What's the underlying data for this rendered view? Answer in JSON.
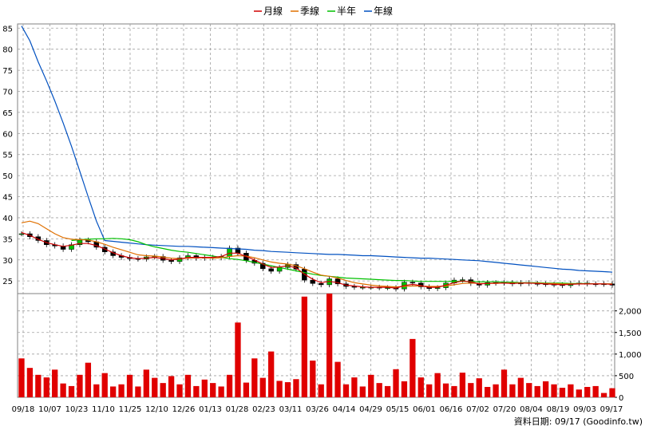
{
  "chart_data": {
    "type": "candlestick-volume",
    "legend": [
      {
        "label": "月線",
        "color": "#d00000"
      },
      {
        "label": "季線",
        "color": "#e07000"
      },
      {
        "label": "半年",
        "color": "#00c000"
      },
      {
        "label": "年線",
        "color": "#0050c0"
      }
    ],
    "price_axis": {
      "ylim": [
        22,
        86
      ],
      "ticks": [
        25,
        30,
        35,
        40,
        45,
        50,
        55,
        60,
        65,
        70,
        75,
        80,
        85
      ]
    },
    "volume_axis": {
      "ylim": [
        0,
        2400
      ],
      "ticks": [
        "0",
        "500",
        "1,000",
        "1,500",
        "2,000"
      ]
    },
    "x_ticks": [
      "09/18",
      "10/07",
      "10/23",
      "11/10",
      "11/25",
      "12/10",
      "12/26",
      "01/13",
      "01/28",
      "02/23",
      "03/11",
      "03/26",
      "04/14",
      "04/29",
      "05/15",
      "06/01",
      "06/16",
      "07/02",
      "07/20",
      "08/04",
      "08/19",
      "09/03",
      "09/17"
    ],
    "footer": "資料日期: 09/17 (Goodinfo.tw)",
    "price_close": [
      36.2,
      35.5,
      34.6,
      33.6,
      33.3,
      32.5,
      33.6,
      34.7,
      34.3,
      33.0,
      31.9,
      31.0,
      30.6,
      30.3,
      30.2,
      30.7,
      30.8,
      29.9,
      29.6,
      30.5,
      31.0,
      30.4,
      30.6,
      30.5,
      30.8,
      32.8,
      31.6,
      29.9,
      29.2,
      27.9,
      27.3,
      28.2,
      28.9,
      27.8,
      25.2,
      24.4,
      24.1,
      25.5,
      24.3,
      23.7,
      23.5,
      23.5,
      23.5,
      23.4,
      23.4,
      23.1,
      24.7,
      24.5,
      23.6,
      23.2,
      23.4,
      24.5,
      25.2,
      25.3,
      24.4,
      24.0,
      24.6,
      24.5,
      24.6,
      24.3,
      24.6,
      24.4,
      24.3,
      24.2,
      24.1,
      23.9,
      24.4,
      24.5,
      24.3,
      24.2,
      24.3,
      24.0
    ],
    "ma_month": [
      36.5,
      35.8,
      34.9,
      34.1,
      33.6,
      33.2,
      33.5,
      33.9,
      33.9,
      33.4,
      32.6,
      31.7,
      31.0,
      30.5,
      30.3,
      30.4,
      30.6,
      30.3,
      30.0,
      30.2,
      30.6,
      30.6,
      30.6,
      30.6,
      30.8,
      31.6,
      31.6,
      30.8,
      30.0,
      29.0,
      28.2,
      28.3,
      28.6,
      28.1,
      26.6,
      25.4,
      24.6,
      24.9,
      24.6,
      24.0,
      23.8,
      23.6,
      23.5,
      23.5,
      23.5,
      23.3,
      23.9,
      24.2,
      23.9,
      23.5,
      23.5,
      24.0,
      24.6,
      25.0,
      24.8,
      24.3,
      24.4,
      24.5,
      24.5,
      24.4,
      24.5,
      24.5,
      24.4,
      24.3,
      24.2,
      24.1,
      24.2,
      24.3,
      24.3,
      24.3,
      24.3,
      24.2
    ],
    "ma_quarter": [
      38.8,
      39.2,
      38.6,
      37.4,
      36.2,
      35.3,
      34.9,
      34.8,
      34.7,
      34.3,
      33.7,
      33.0,
      32.4,
      31.8,
      31.2,
      31.0,
      30.9,
      30.7,
      30.4,
      30.3,
      30.4,
      30.5,
      30.5,
      30.4,
      30.5,
      30.8,
      31.0,
      30.9,
      30.5,
      30.0,
      29.5,
      29.2,
      29.0,
      28.6,
      27.9,
      27.1,
      26.4,
      26.1,
      25.7,
      25.1,
      24.6,
      24.3,
      24.0,
      23.8,
      23.7,
      23.6,
      23.7,
      23.8,
      23.8,
      23.7,
      23.7,
      23.8,
      24.1,
      24.4,
      24.5,
      24.4,
      24.4,
      24.4,
      24.5,
      24.5,
      24.5,
      24.5,
      24.5,
      24.4,
      24.4,
      24.3,
      24.3,
      24.3,
      24.3,
      24.3,
      24.3,
      24.3
    ],
    "ma_half": [
      null,
      null,
      null,
      null,
      null,
      null,
      34.6,
      34.8,
      34.9,
      35.0,
      35.0,
      35.1,
      35.0,
      34.8,
      34.3,
      33.6,
      33.1,
      32.7,
      32.3,
      32.0,
      31.8,
      31.5,
      31.2,
      30.9,
      30.6,
      30.3,
      30.1,
      29.8,
      29.4,
      29.0,
      28.6,
      28.2,
      27.8,
      27.4,
      27.0,
      26.6,
      26.3,
      26.1,
      25.9,
      25.7,
      25.6,
      25.5,
      25.4,
      25.3,
      25.2,
      25.1,
      25.1,
      25.0,
      24.9,
      24.9,
      24.9,
      24.9,
      24.9,
      24.9,
      24.9,
      24.8,
      24.8,
      24.8,
      24.7,
      24.7,
      24.6,
      24.6,
      24.6,
      24.5,
      24.5,
      24.5,
      24.4,
      24.4,
      24.4,
      24.3,
      24.3,
      24.3
    ],
    "ma_year": [
      85.5,
      82.0,
      77.0,
      72.5,
      67.7,
      62.5,
      57.0,
      51.0,
      45.0,
      39.2,
      34.6,
      34.4,
      34.2,
      34.0,
      33.8,
      33.6,
      33.5,
      33.4,
      33.3,
      33.2,
      33.2,
      33.1,
      33.0,
      32.9,
      32.8,
      32.7,
      32.6,
      32.5,
      32.3,
      32.2,
      32.0,
      31.9,
      31.8,
      31.7,
      31.6,
      31.5,
      31.4,
      31.3,
      31.3,
      31.2,
      31.1,
      31.0,
      31.0,
      30.9,
      30.8,
      30.7,
      30.6,
      30.5,
      30.4,
      30.4,
      30.3,
      30.2,
      30.1,
      30.0,
      29.9,
      29.8,
      29.6,
      29.4,
      29.2,
      29.0,
      28.8,
      28.6,
      28.4,
      28.2,
      28.0,
      27.8,
      27.7,
      27.5,
      27.4,
      27.3,
      27.2,
      27.1
    ],
    "volume": [
      900,
      680,
      520,
      460,
      640,
      320,
      260,
      520,
      800,
      300,
      560,
      250,
      300,
      520,
      250,
      640,
      450,
      330,
      490,
      300,
      520,
      260,
      410,
      330,
      250,
      520,
      1730,
      340,
      900,
      450,
      1060,
      380,
      350,
      420,
      2330,
      850,
      300,
      2400,
      820,
      300,
      460,
      250,
      520,
      330,
      260,
      650,
      370,
      1350,
      460,
      300,
      560,
      320,
      260,
      570,
      330,
      440,
      240,
      300,
      640,
      300,
      450,
      330,
      260,
      370,
      300,
      220,
      300,
      180,
      240,
      260,
      100,
      210
    ]
  }
}
